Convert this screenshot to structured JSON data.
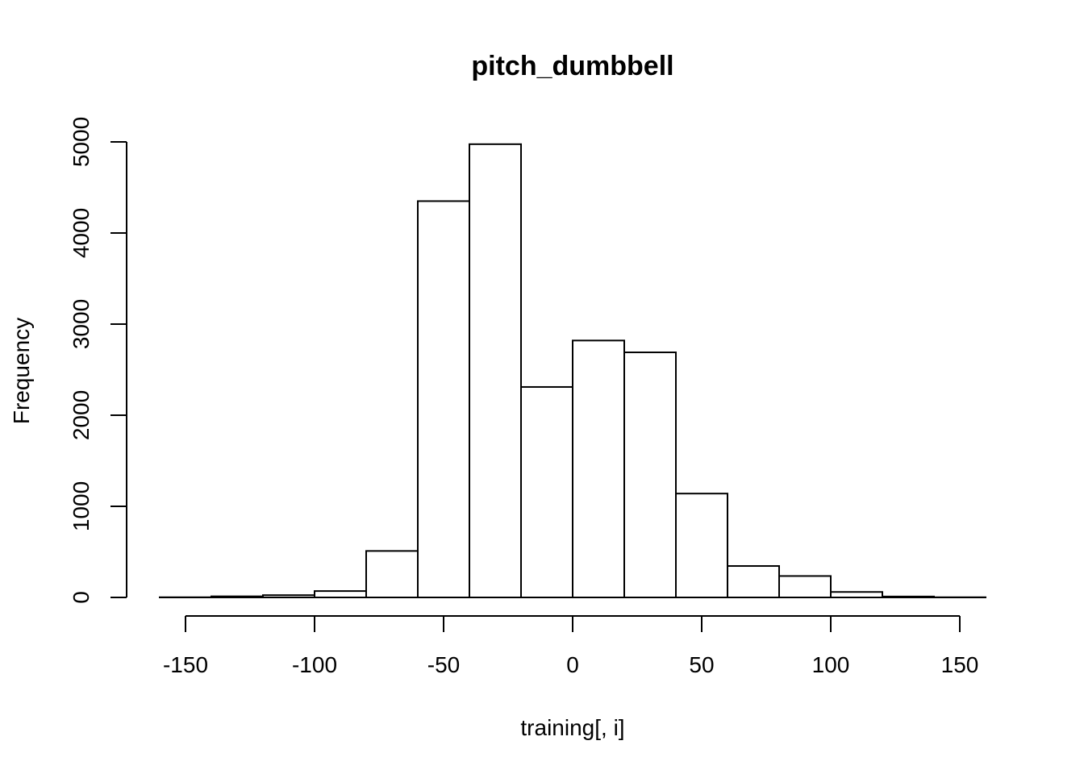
{
  "chart_data": {
    "type": "bar",
    "title": "pitch_dumbbell",
    "xlabel": "training[, i]",
    "ylabel": "Frequency",
    "xlim": [
      -160,
      160
    ],
    "ylim": [
      0,
      5000
    ],
    "x_ticks": [
      -150,
      -100,
      -50,
      0,
      50,
      100,
      150
    ],
    "y_ticks": [
      0,
      1000,
      2000,
      3000,
      4000,
      5000
    ],
    "bins": [
      {
        "from": -160,
        "to": -140,
        "value": 2
      },
      {
        "from": -140,
        "to": -120,
        "value": 12
      },
      {
        "from": -120,
        "to": -100,
        "value": 25
      },
      {
        "from": -100,
        "to": -80,
        "value": 70
      },
      {
        "from": -80,
        "to": -60,
        "value": 510
      },
      {
        "from": -60,
        "to": -40,
        "value": 4350
      },
      {
        "from": -40,
        "to": -20,
        "value": 4975
      },
      {
        "from": -20,
        "to": 0,
        "value": 2310
      },
      {
        "from": 0,
        "to": 20,
        "value": 2820
      },
      {
        "from": 20,
        "to": 40,
        "value": 2690
      },
      {
        "from": 40,
        "to": 60,
        "value": 1140
      },
      {
        "from": 60,
        "to": 80,
        "value": 345
      },
      {
        "from": 80,
        "to": 100,
        "value": 235
      },
      {
        "from": 100,
        "to": 120,
        "value": 60
      },
      {
        "from": 120,
        "to": 140,
        "value": 10
      },
      {
        "from": 140,
        "to": 160,
        "value": 2
      }
    ]
  }
}
